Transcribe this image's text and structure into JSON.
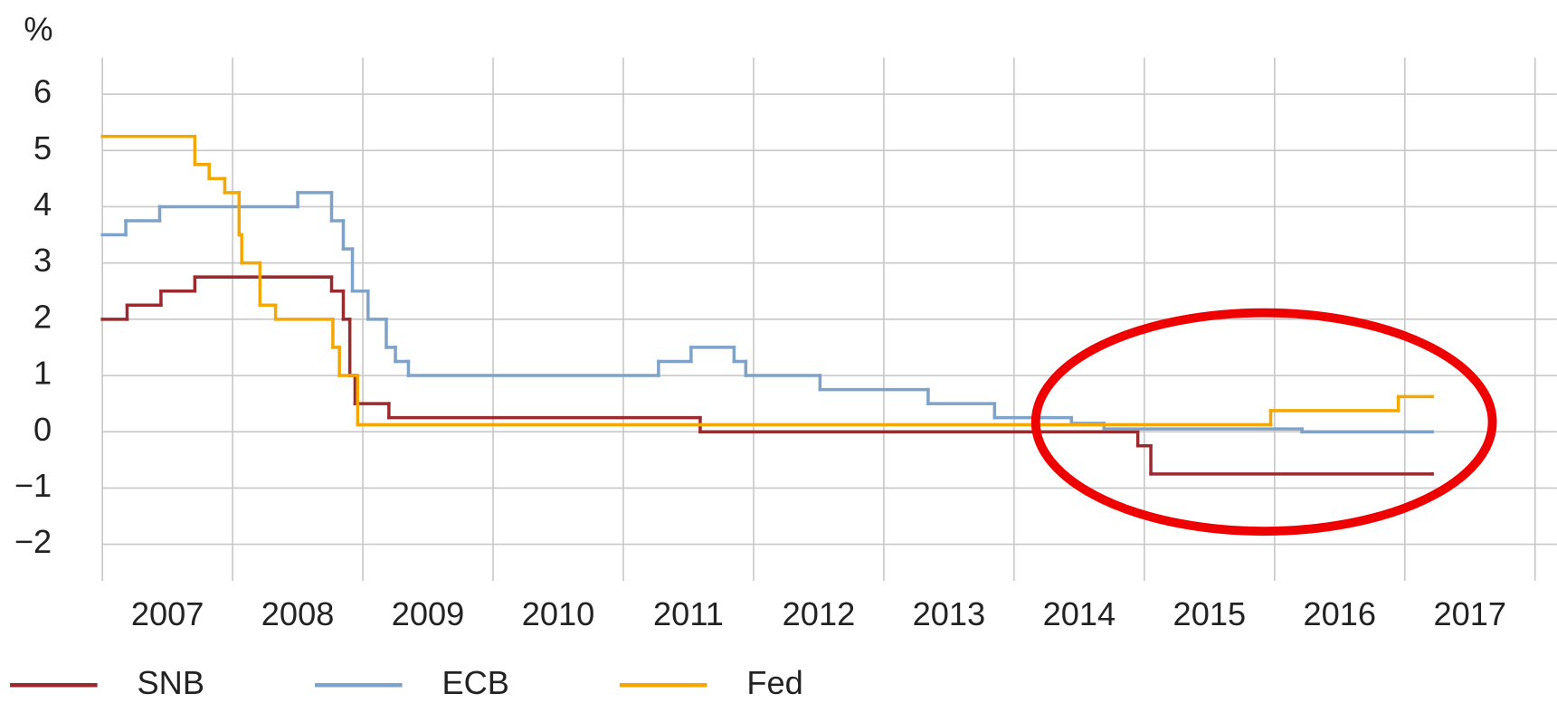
{
  "chart_data": {
    "type": "line",
    "step": true,
    "y_unit": "%",
    "xlim": [
      2007,
      2018
    ],
    "xticks": [
      {
        "value": 2007,
        "label": "2007"
      },
      {
        "value": 2008,
        "label": "2008"
      },
      {
        "value": 2009,
        "label": "2009"
      },
      {
        "value": 2010,
        "label": "2010"
      },
      {
        "value": 2011,
        "label": "2011"
      },
      {
        "value": 2012,
        "label": "2012"
      },
      {
        "value": 2013,
        "label": "2013"
      },
      {
        "value": 2014,
        "label": "2014"
      },
      {
        "value": 2015,
        "label": "2015"
      },
      {
        "value": 2016,
        "label": "2016"
      },
      {
        "value": 2017,
        "label": "2017"
      }
    ],
    "ylim": [
      -2.65,
      6.65
    ],
    "yticks": [
      {
        "value": -2,
        "label": "−2"
      },
      {
        "value": -1,
        "label": "−1"
      },
      0,
      1,
      2,
      3,
      4,
      5,
      6
    ],
    "grid": true,
    "legend": "bottom",
    "series": [
      {
        "name": "SNB",
        "color": "#9b2a2f",
        "x": [
          2007.0,
          2007.19,
          2007.45,
          2007.71,
          2008.76,
          2008.85,
          2008.9,
          2008.94,
          2009.2,
          2011.59,
          2014.95,
          2015.05,
          2017.21
        ],
        "values": [
          2.0,
          2.25,
          2.5,
          2.75,
          2.5,
          2.0,
          1.0,
          0.5,
          0.25,
          0.0,
          -0.25,
          -0.75,
          -0.75
        ]
      },
      {
        "name": "ECB",
        "color": "#7fa3c8",
        "x": [
          2007.0,
          2007.18,
          2007.44,
          2008.5,
          2008.76,
          2008.85,
          2008.92,
          2009.04,
          2009.18,
          2009.25,
          2009.35,
          2011.27,
          2011.52,
          2011.85,
          2011.94,
          2012.51,
          2013.34,
          2013.85,
          2014.44,
          2014.69,
          2016.21,
          2017.21
        ],
        "values": [
          3.5,
          3.75,
          4.0,
          4.25,
          3.75,
          3.25,
          2.5,
          2.0,
          1.5,
          1.25,
          1.0,
          1.25,
          1.5,
          1.25,
          1.0,
          0.75,
          0.5,
          0.25,
          0.15,
          0.05,
          0.0,
          0.0
        ]
      },
      {
        "name": "Fed",
        "color": "#f4a700",
        "x": [
          2007.0,
          2007.71,
          2007.82,
          2007.94,
          2008.05,
          2008.07,
          2008.21,
          2008.33,
          2008.77,
          2008.82,
          2008.96,
          2015.97,
          2016.95,
          2017.21
        ],
        "values": [
          5.25,
          4.75,
          4.5,
          4.25,
          3.5,
          3.0,
          2.25,
          2.0,
          1.5,
          1.0,
          0.125,
          0.375,
          0.625,
          0.625
        ]
      }
    ]
  }
}
